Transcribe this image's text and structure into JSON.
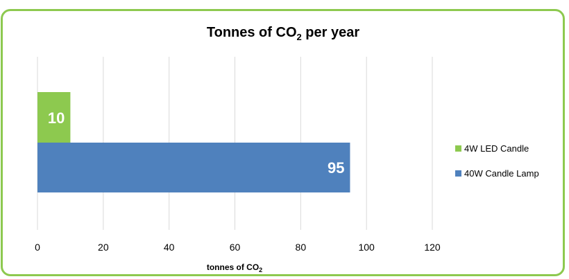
{
  "colors": {
    "border": "#8DC94F",
    "led": "#8DC94F",
    "lamp": "#4F81BD",
    "grid": "#d9d9d9"
  },
  "chart_data": {
    "type": "bar",
    "orientation": "horizontal",
    "title_main": "Tonnes of CO",
    "title_sub": "2",
    "title_suffix": " per year",
    "xlabel_main": "tonnes of CO",
    "xlabel_sub": "2",
    "xlim": [
      0,
      120
    ],
    "xticks": [
      0,
      20,
      40,
      60,
      80,
      100,
      120
    ],
    "tick_labels": [
      "0",
      "20",
      "40",
      "60",
      "80",
      "100",
      "120"
    ],
    "grid": true,
    "legend_position": "right",
    "series": [
      {
        "name": "4W LED Candle",
        "value": 10,
        "label": "10",
        "color": "#8DC94F"
      },
      {
        "name": "40W Candle Lamp",
        "value": 95,
        "label": "95",
        "color": "#4F81BD"
      }
    ]
  }
}
